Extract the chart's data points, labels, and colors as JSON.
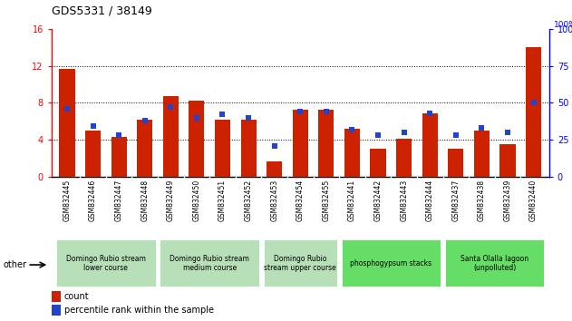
{
  "title": "GDS5331 / 38149",
  "samples": [
    "GSM832445",
    "GSM832446",
    "GSM832447",
    "GSM832448",
    "GSM832449",
    "GSM832450",
    "GSM832451",
    "GSM832452",
    "GSM832453",
    "GSM832454",
    "GSM832455",
    "GSM832441",
    "GSM832442",
    "GSM832443",
    "GSM832444",
    "GSM832437",
    "GSM832438",
    "GSM832439",
    "GSM832440"
  ],
  "counts": [
    11.7,
    5.0,
    4.3,
    6.2,
    8.7,
    8.2,
    6.2,
    6.2,
    1.6,
    7.2,
    7.2,
    5.2,
    3.0,
    4.1,
    6.8,
    3.0,
    5.0,
    3.5,
    14.0
  ],
  "percentiles": [
    46,
    34,
    28,
    38,
    47,
    40,
    42,
    40,
    21,
    44,
    44,
    32,
    28,
    30,
    43,
    28,
    33,
    30,
    50
  ],
  "ylim_left": [
    0,
    16
  ],
  "ylim_right": [
    0,
    100
  ],
  "yticks_left": [
    0,
    4,
    8,
    12,
    16
  ],
  "yticks_right": [
    0,
    25,
    50,
    75,
    100
  ],
  "bar_color": "#cc2200",
  "dot_color": "#2244cc",
  "groups": [
    {
      "label": "Domingo Rubio stream\nlower course",
      "start": 0,
      "end": 3,
      "color": "#b8e0b8"
    },
    {
      "label": "Domingo Rubio stream\nmedium course",
      "start": 4,
      "end": 7,
      "color": "#b8e0b8"
    },
    {
      "label": "Domingo Rubio\nstream upper course",
      "start": 8,
      "end": 10,
      "color": "#b8e0b8"
    },
    {
      "label": "phosphogypsum stacks",
      "start": 11,
      "end": 14,
      "color": "#66dd66"
    },
    {
      "label": "Santa Olalla lagoon\n(unpolluted)",
      "start": 15,
      "end": 18,
      "color": "#66dd66"
    }
  ],
  "legend_count_label": "count",
  "legend_pct_label": "percentile rank within the sample",
  "other_label": "other",
  "xtick_bg": "#d0d0d0"
}
